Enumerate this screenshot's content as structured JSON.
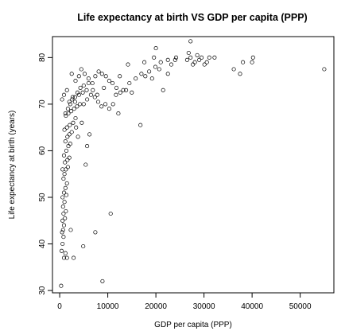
{
  "chart_data": {
    "type": "scatter",
    "title": "Life expectancy at birth VS GDP per capita (PPP)",
    "xlabel": "GDP per capita (PPP)",
    "ylabel": "Life expectancy at birth (years)",
    "xlim": [
      -1500,
      57000
    ],
    "ylim": [
      29.5,
      84.5
    ],
    "xticks": [
      0,
      10000,
      20000,
      30000,
      40000,
      50000
    ],
    "yticks": [
      30,
      40,
      50,
      60,
      70,
      80
    ],
    "grid": false,
    "marker": "circle-open",
    "points": [
      [
        300,
        31
      ],
      [
        400,
        38.5
      ],
      [
        900,
        37
      ],
      [
        1200,
        38
      ],
      [
        600,
        40
      ],
      [
        800,
        41.5
      ],
      [
        500,
        42.5
      ],
      [
        700,
        43
      ],
      [
        900,
        44
      ],
      [
        600,
        45
      ],
      [
        1100,
        45.5
      ],
      [
        800,
        46.5
      ],
      [
        1300,
        47
      ],
      [
        700,
        48
      ],
      [
        1000,
        49
      ],
      [
        600,
        50
      ],
      [
        1400,
        50.5
      ],
      [
        900,
        51
      ],
      [
        1200,
        52
      ],
      [
        1500,
        53
      ],
      [
        800,
        54
      ],
      [
        1000,
        55
      ],
      [
        1300,
        56
      ],
      [
        1700,
        56.5
      ],
      [
        600,
        56
      ],
      [
        1100,
        57.5
      ],
      [
        1600,
        58
      ],
      [
        2000,
        58.5
      ],
      [
        900,
        59
      ],
      [
        1400,
        60
      ],
      [
        1800,
        61
      ],
      [
        2200,
        61.5
      ],
      [
        1200,
        62
      ],
      [
        1600,
        63
      ],
      [
        2000,
        63.5
      ],
      [
        2500,
        64
      ],
      [
        1000,
        64.5
      ],
      [
        1500,
        65
      ],
      [
        2100,
        65.5
      ],
      [
        2800,
        66
      ],
      [
        3300,
        67
      ],
      [
        1300,
        67.5
      ],
      [
        1800,
        68
      ],
      [
        2400,
        68.5
      ],
      [
        3000,
        69
      ],
      [
        3600,
        69.5
      ],
      [
        4200,
        70
      ],
      [
        2000,
        70.5
      ],
      [
        2600,
        71
      ],
      [
        3200,
        71.5
      ],
      [
        4000,
        72
      ],
      [
        4800,
        72.5
      ],
      [
        5600,
        73
      ],
      [
        1500,
        73
      ],
      [
        900,
        72
      ],
      [
        500,
        71
      ],
      [
        2500,
        76.5
      ],
      [
        3300,
        75
      ],
      [
        4000,
        76
      ],
      [
        4500,
        77.5
      ],
      [
        5200,
        76.5
      ],
      [
        6000,
        75.5
      ],
      [
        6800,
        74.5
      ],
      [
        7400,
        76
      ],
      [
        8100,
        77
      ],
      [
        8800,
        76.5
      ],
      [
        9600,
        76
      ],
      [
        10300,
        75
      ],
      [
        11000,
        74.5
      ],
      [
        11800,
        73.5
      ],
      [
        12600,
        72.5
      ],
      [
        13200,
        73
      ],
      [
        5000,
        70
      ],
      [
        5700,
        71
      ],
      [
        6500,
        72
      ],
      [
        7300,
        71.5
      ],
      [
        8000,
        70.5
      ],
      [
        8700,
        69.5
      ],
      [
        9500,
        70
      ],
      [
        10300,
        69
      ],
      [
        11100,
        70
      ],
      [
        6200,
        63.5
      ],
      [
        5700,
        61
      ],
      [
        5400,
        57
      ],
      [
        2300,
        43
      ],
      [
        1500,
        37
      ],
      [
        2900,
        37
      ],
      [
        4900,
        39.5
      ],
      [
        7400,
        42.5
      ],
      [
        8900,
        32
      ],
      [
        10600,
        46.5
      ],
      [
        16800,
        65.5
      ],
      [
        12200,
        68
      ],
      [
        3800,
        63
      ],
      [
        4600,
        66
      ],
      [
        3400,
        65
      ],
      [
        6900,
        73
      ],
      [
        7800,
        72
      ],
      [
        9200,
        73.5
      ],
      [
        11700,
        72
      ],
      [
        14500,
        74.5
      ],
      [
        15800,
        75.5
      ],
      [
        17000,
        76.5
      ],
      [
        17800,
        76
      ],
      [
        18600,
        77
      ],
      [
        19200,
        75.5
      ],
      [
        19900,
        78
      ],
      [
        20700,
        77.5
      ],
      [
        21500,
        73
      ],
      [
        22500,
        76.5
      ],
      [
        23200,
        78.5
      ],
      [
        24000,
        79.5
      ],
      [
        14200,
        78.5
      ],
      [
        17600,
        79
      ],
      [
        19600,
        80
      ],
      [
        21000,
        79
      ],
      [
        22500,
        79.5
      ],
      [
        24200,
        80
      ],
      [
        26500,
        79.5
      ],
      [
        26800,
        81
      ],
      [
        27200,
        80
      ],
      [
        27700,
        78.5
      ],
      [
        28100,
        79
      ],
      [
        28600,
        80.5
      ],
      [
        29000,
        79.5
      ],
      [
        29500,
        80
      ],
      [
        30100,
        78.5
      ],
      [
        30600,
        79
      ],
      [
        31100,
        80
      ],
      [
        32200,
        80
      ],
      [
        36200,
        77.5
      ],
      [
        37500,
        76.5
      ],
      [
        38100,
        79
      ],
      [
        40200,
        80
      ],
      [
        40000,
        79
      ],
      [
        27200,
        83.5
      ],
      [
        20000,
        82
      ],
      [
        55000,
        77.5
      ],
      [
        1200,
        68
      ],
      [
        1700,
        69
      ],
      [
        2200,
        70
      ],
      [
        2700,
        71.5
      ],
      [
        3200,
        70.5
      ],
      [
        3700,
        72.5
      ],
      [
        4300,
        73.5
      ],
      [
        5000,
        74
      ],
      [
        6000,
        74.5
      ],
      [
        13800,
        73
      ],
      [
        12500,
        76
      ],
      [
        15000,
        72.5
      ]
    ]
  }
}
